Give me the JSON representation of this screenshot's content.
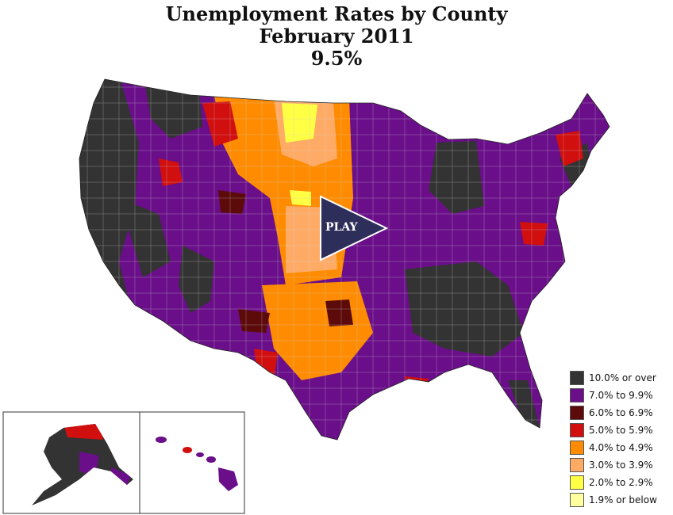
{
  "title": {
    "line1": "Unemployment Rates by County",
    "line2": "February 2011",
    "line3": "9.5%"
  },
  "play_button": {
    "label": "PLAY"
  },
  "legend": [
    {
      "label": "10.0% or over",
      "color": "#333333"
    },
    {
      "label": "7.0% to 9.9%",
      "color": "#6a0e8a"
    },
    {
      "label": "6.0% to 6.9%",
      "color": "#5c0a0a"
    },
    {
      "label": "5.0% to 5.9%",
      "color": "#d10f0f"
    },
    {
      "label": "4.0% to 4.9%",
      "color": "#ff8c00"
    },
    {
      "label": "3.0% to 3.9%",
      "color": "#ffab66"
    },
    {
      "label": "2.0% to 2.9%",
      "color": "#ffff44"
    },
    {
      "label": "1.9% or below",
      "color": "#ffffa0"
    }
  ],
  "insets": [
    "alaska",
    "hawaii"
  ]
}
